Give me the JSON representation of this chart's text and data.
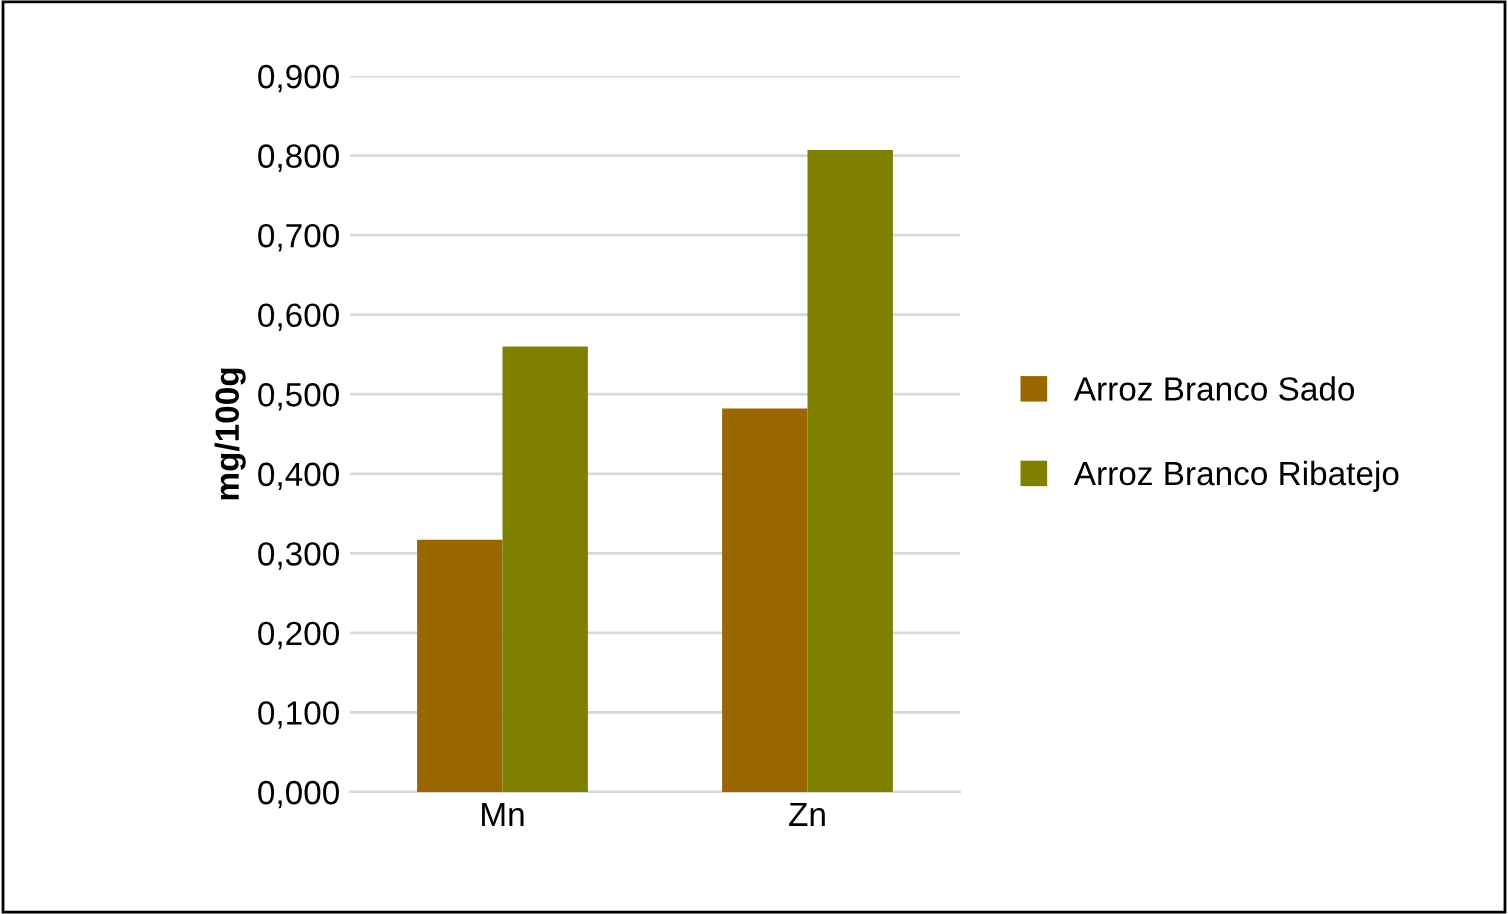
{
  "chart_data": {
    "type": "bar",
    "ylabel": "mg/100g",
    "categories": [
      "Mn",
      "Zn"
    ],
    "series": [
      {
        "name": "Arroz Branco Sado",
        "color": "#996600",
        "values": [
          0.317,
          0.482
        ]
      },
      {
        "name": "Arroz Branco Ribatejo",
        "color": "#808000",
        "values": [
          0.56,
          0.807
        ]
      }
    ],
    "ylim": [
      0,
      0.9
    ],
    "yticks": [
      {
        "value": 0,
        "label": "0,000"
      },
      {
        "value": 0.1,
        "label": "0,100"
      },
      {
        "value": 0.2,
        "label": "0,200"
      },
      {
        "value": 0.3,
        "label": "0,300"
      },
      {
        "value": 0.4,
        "label": "0,400"
      },
      {
        "value": 0.5,
        "label": "0,500"
      },
      {
        "value": 0.6,
        "label": "0,600"
      },
      {
        "value": 0.7,
        "label": "0,700"
      },
      {
        "value": 0.8,
        "label": "0,800"
      },
      {
        "value": 0.9,
        "label": "0,900"
      }
    ],
    "grid": "y",
    "legend": "right"
  }
}
